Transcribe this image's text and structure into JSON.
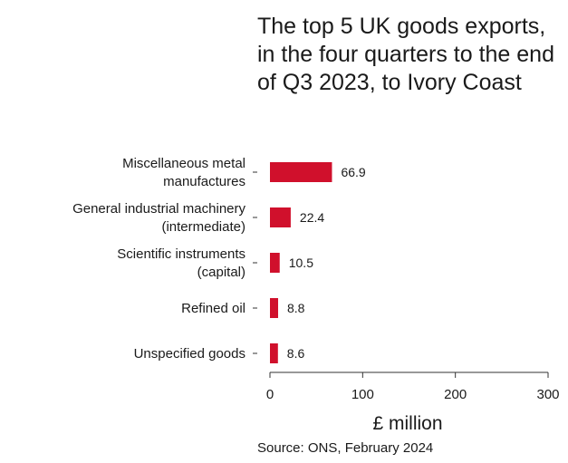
{
  "chart_data": {
    "type": "bar",
    "orientation": "horizontal",
    "title": "The top 5 UK goods exports, in the four quarters to the end of Q3 2023, to Ivory Coast",
    "categories": [
      [
        "Miscellaneous metal",
        "manufactures"
      ],
      [
        "General industrial machinery",
        "(intermediate)"
      ],
      [
        "Scientific instruments",
        "(capital)"
      ],
      [
        "Refined oil"
      ],
      [
        "Unspecified goods"
      ]
    ],
    "values": [
      66.9,
      22.4,
      10.5,
      8.8,
      8.6
    ],
    "value_labels": [
      "66.9",
      "22.4",
      "10.5",
      "8.8",
      "8.6"
    ],
    "xlabel": "£ million",
    "xlim": [
      0,
      300
    ],
    "xticks": [
      0,
      100,
      200,
      300
    ],
    "bar_color": "#d0102c",
    "grid": false
  },
  "source": "Source: ONS, February 2024"
}
